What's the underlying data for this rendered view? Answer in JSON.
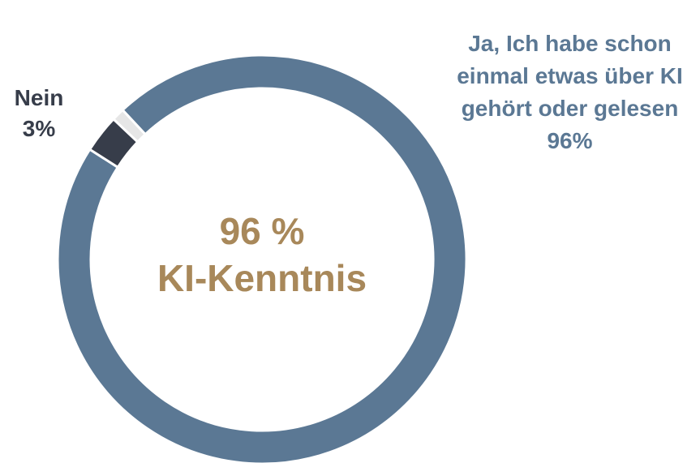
{
  "chart_data": {
    "type": "donut",
    "categories": [
      "Ja, Ich habe schon einmal etwas über KI gehört oder gelesen",
      "Nein",
      null
    ],
    "values": [
      96,
      3,
      1
    ],
    "value_labels": [
      "96%",
      "3%",
      null
    ],
    "colors": [
      "#5b7894",
      "#373d4a",
      "#e6e6e6"
    ],
    "center_text": [
      "96 %",
      "KI-Kenntnis"
    ]
  }
}
